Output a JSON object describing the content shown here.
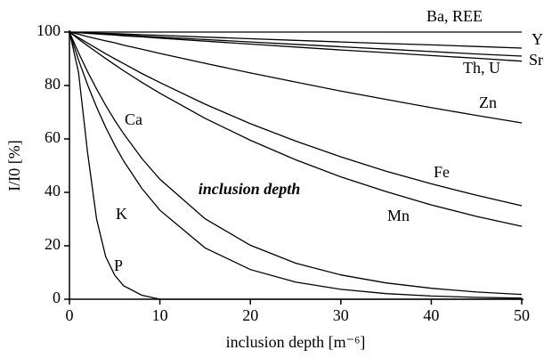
{
  "chart_data": {
    "type": "line",
    "x_label": "inclusion depth [m⁻⁶]",
    "y_label": "I/I0 [%]",
    "annotation": "inclusion depth",
    "x": [
      0,
      1,
      2,
      3,
      4,
      5,
      6,
      8,
      10,
      15,
      20,
      25,
      30,
      35,
      40,
      45,
      50
    ],
    "series": [
      {
        "name": "Ba, REE",
        "color": "#000000",
        "values": [
          100,
          100,
          100,
          100,
          100,
          100,
          100,
          100,
          100,
          100,
          100,
          100,
          100,
          100,
          100,
          100,
          100
        ]
      },
      {
        "name": "Y",
        "color": "#000000",
        "values": [
          100,
          99.9,
          99.8,
          99.6,
          99.5,
          99.4,
          99.3,
          99.0,
          98.8,
          98.1,
          97.5,
          96.9,
          96.3,
          95.7,
          95.2,
          94.6,
          94.0
        ]
      },
      {
        "name": "Sr",
        "color": "#000000",
        "values": [
          100,
          99.8,
          99.6,
          99.4,
          99.2,
          99.1,
          98.9,
          98.5,
          98.1,
          97.2,
          96.3,
          95.4,
          94.5,
          93.6,
          92.7,
          91.8,
          91.0
        ]
      },
      {
        "name": "Th, U",
        "color": "#000000",
        "values": [
          100,
          99.8,
          99.5,
          99.3,
          99.1,
          98.9,
          98.6,
          98.2,
          97.7,
          96.6,
          95.5,
          94.4,
          93.3,
          92.3,
          91.2,
          90.2,
          89.1
        ]
      },
      {
        "name": "Zn",
        "color": "#000000",
        "values": [
          100,
          99.2,
          98.3,
          97.5,
          96.7,
          96.0,
          95.1,
          93.6,
          92.0,
          88.3,
          84.7,
          81.3,
          77.9,
          74.8,
          71.7,
          68.8,
          66.0
        ]
      },
      {
        "name": "Fe",
        "color": "#000000",
        "values": [
          100,
          97.9,
          95.9,
          93.9,
          91.9,
          90.0,
          88.2,
          84.5,
          81.1,
          73.0,
          65.7,
          59.2,
          53.3,
          47.9,
          43.2,
          38.9,
          35.0
        ]
      },
      {
        "name": "Mn",
        "color": "#000000",
        "values": [
          100,
          97.4,
          94.9,
          92.5,
          90.1,
          87.8,
          85.5,
          81.2,
          77.1,
          67.7,
          59.5,
          52.2,
          45.8,
          40.3,
          35.3,
          31.0,
          27.3
        ]
      },
      {
        "name": "Ca",
        "color": "#000000",
        "values": [
          100,
          92.3,
          85.2,
          78.7,
          72.6,
          67.0,
          61.9,
          52.7,
          44.9,
          30.1,
          20.2,
          13.5,
          9.1,
          6.1,
          4.1,
          2.7,
          1.8
        ]
      },
      {
        "name": "K",
        "color": "#000000",
        "values": [
          100,
          89.6,
          80.3,
          71.9,
          64.4,
          57.7,
          51.7,
          41.5,
          33.3,
          19.2,
          11.1,
          6.4,
          3.7,
          2.1,
          1.2,
          0.7,
          0.4
        ]
      },
      {
        "name": "P",
        "color": "#000000",
        "values": [
          100,
          85,
          55,
          30,
          16,
          9,
          5,
          1.5,
          0,
          0,
          0,
          0,
          0,
          0,
          0,
          0,
          0
        ]
      }
    ],
    "xlim": [
      0,
      50
    ],
    "xticks": [
      0,
      10,
      20,
      30,
      40,
      50
    ],
    "ylim": [
      0,
      100
    ],
    "yticks": [
      0,
      20,
      40,
      60,
      80,
      100
    ],
    "grid": false
  }
}
